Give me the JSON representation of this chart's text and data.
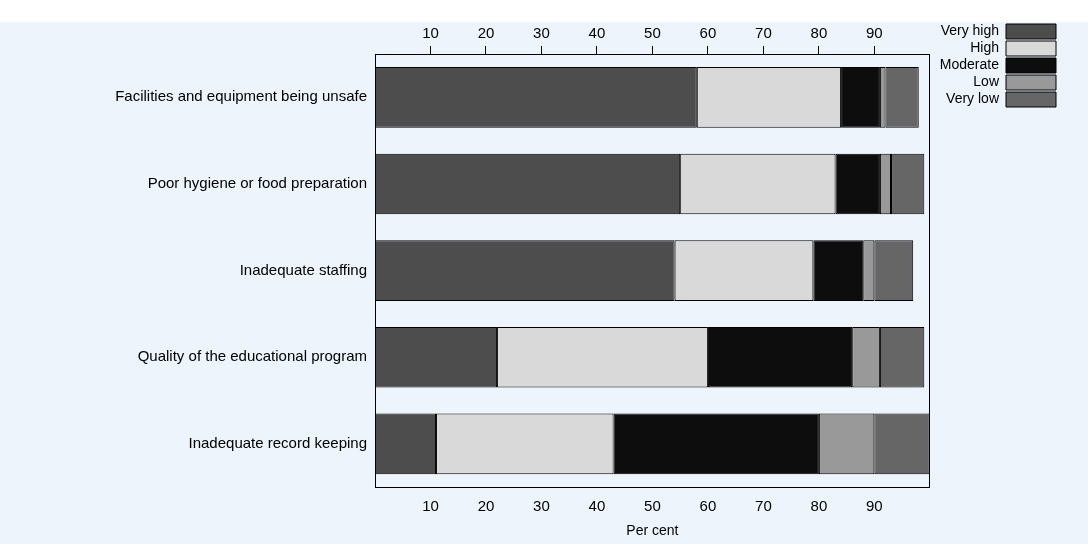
{
  "chart_data": {
    "type": "bar",
    "orientation": "horizontal",
    "stacked": true,
    "xlabel": "Per cent",
    "categories": [
      "Facilities and equipment being unsafe",
      "Poor hygiene or food preparation",
      "Inadequate staffing",
      "Quality of the educational program",
      "Inadequate record keeping"
    ],
    "series": [
      {
        "name": "Very high",
        "color": "#4d4d4d",
        "values": [
          58,
          55,
          54,
          22,
          11
        ]
      },
      {
        "name": "High",
        "color": "#d9d9d9",
        "values": [
          26,
          28,
          25,
          38,
          32
        ]
      },
      {
        "name": "Moderate",
        "color": "#0d0d0d",
        "values": [
          7,
          8,
          9,
          26,
          37
        ]
      },
      {
        "name": "Low",
        "color": "#999999",
        "values": [
          1,
          2,
          2,
          5,
          10
        ]
      },
      {
        "name": "Very low",
        "color": "#666666",
        "values": [
          6,
          6,
          7,
          8,
          10
        ]
      }
    ],
    "xlim": [
      0,
      100
    ],
    "xticks": [
      10,
      20,
      30,
      40,
      50,
      60,
      70,
      80,
      90
    ],
    "x2lim": [
      0,
      100
    ],
    "x2ticks": [
      10,
      20,
      30,
      40,
      50,
      60,
      70,
      80,
      90
    ],
    "grid": false,
    "legend": "top right"
  }
}
